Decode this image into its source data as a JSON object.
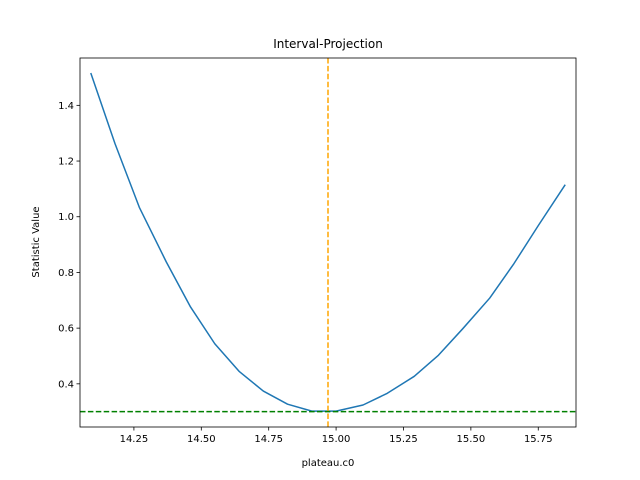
{
  "chart_data": {
    "type": "line",
    "title": "Interval-Projection",
    "xlabel": "plateau.c0",
    "ylabel": "Statistic Value",
    "xlim": [
      14.05,
      15.89
    ],
    "ylim": [
      0.245,
      1.57
    ],
    "xticks": [
      14.25,
      14.5,
      14.75,
      15.0,
      15.25,
      15.5,
      15.75
    ],
    "xtick_labels": [
      "14.25",
      "14.50",
      "14.75",
      "15.00",
      "15.25",
      "15.50",
      "15.75"
    ],
    "yticks": [
      0.4,
      0.6,
      0.8,
      1.0,
      1.2,
      1.4
    ],
    "ytick_labels": [
      "0.4",
      "0.6",
      "0.8",
      "1.0",
      "1.2",
      "1.4"
    ],
    "grid": false,
    "series": [
      {
        "color": "#1f77b4",
        "x": [
          14.09,
          14.18,
          14.27,
          14.37,
          14.46,
          14.55,
          14.64,
          14.73,
          14.82,
          14.91,
          15.0,
          15.1,
          15.19,
          15.29,
          15.38,
          15.47,
          15.57,
          15.66,
          15.75,
          15.85
        ],
        "y": [
          1.516,
          1.262,
          1.034,
          0.838,
          0.676,
          0.544,
          0.445,
          0.374,
          0.327,
          0.302,
          0.302,
          0.324,
          0.366,
          0.427,
          0.503,
          0.598,
          0.708,
          0.832,
          0.968,
          1.115
        ]
      }
    ],
    "reference_lines": [
      {
        "orientation": "vertical",
        "value": 14.97,
        "color": "#ffa500",
        "style": "dashed"
      },
      {
        "orientation": "horizontal",
        "value": 0.3,
        "color": "#008000",
        "style": "dashed"
      }
    ]
  }
}
